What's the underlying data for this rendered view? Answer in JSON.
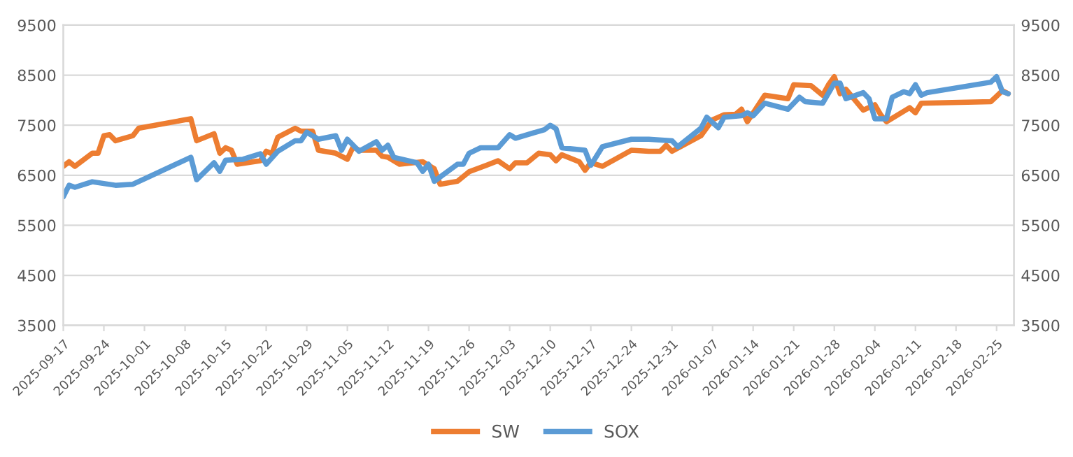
{
  "chart_data": {
    "type": "line",
    "legend": "bottom",
    "grid": "y",
    "line_style": "solid",
    "marker": "none",
    "xlim": [
      "2025-09-17",
      "2026-02-28"
    ],
    "xticks": [
      "2025-09-17",
      "2025-09-24",
      "2025-10-01",
      "2025-10-08",
      "2025-10-15",
      "2025-10-22",
      "2025-10-29",
      "2025-11-05",
      "2025-11-12",
      "2025-11-19",
      "2025-11-26",
      "2025-12-03",
      "2025-12-10",
      "2025-12-17",
      "2025-12-24",
      "2025-12-31",
      "2026-01-07",
      "2026-01-14",
      "2026-01-21",
      "2026-01-28",
      "2026-02-04",
      "2026-02-11",
      "2026-02-18",
      "2026-02-25"
    ],
    "ylim": [
      3500,
      9500
    ],
    "yticks": [
      3500,
      4500,
      5500,
      6500,
      7500,
      8500,
      9500
    ],
    "y2lim": [
      3500,
      9500
    ],
    "y2ticks": [
      3500,
      4500,
      5500,
      6500,
      7500,
      8500,
      9500
    ],
    "series": [
      {
        "name": "SW",
        "color": "#ed7d31",
        "axis": "y",
        "x": [
          "2025-09-17",
          "2025-09-18",
          "2025-09-19",
          "2025-09-22",
          "2025-09-23",
          "2025-09-24",
          "2025-09-25",
          "2025-09-26",
          "2025-09-29",
          "2025-09-30",
          "2025-10-09",
          "2025-10-10",
          "2025-10-13",
          "2025-10-14",
          "2025-10-15",
          "2025-10-16",
          "2025-10-17",
          "2025-10-21",
          "2025-10-22",
          "2025-10-23",
          "2025-10-24",
          "2025-10-27",
          "2025-10-28",
          "2025-10-30",
          "2025-10-31",
          "2025-11-03",
          "2025-11-05",
          "2025-11-06",
          "2025-11-07",
          "2025-11-10",
          "2025-11-11",
          "2025-11-12",
          "2025-11-14",
          "2025-11-18",
          "2025-11-20",
          "2025-11-21",
          "2025-11-24",
          "2025-11-26",
          "2025-11-29",
          "2025-12-01",
          "2025-12-03",
          "2025-12-04",
          "2025-12-06",
          "2025-12-08",
          "2025-12-10",
          "2025-12-11",
          "2025-12-12",
          "2025-12-15",
          "2025-12-16",
          "2025-12-17",
          "2025-12-19",
          "2025-12-24",
          "2025-12-27",
          "2025-12-29",
          "2025-12-30",
          "2025-12-31",
          "2026-01-05",
          "2026-01-07",
          "2026-01-09",
          "2026-01-11",
          "2026-01-12",
          "2026-01-13",
          "2026-01-16",
          "2026-01-20",
          "2026-01-21",
          "2026-01-24",
          "2026-01-26",
          "2026-01-27",
          "2026-01-28",
          "2026-01-29",
          "2026-01-30",
          "2026-02-02",
          "2026-02-04",
          "2026-02-05",
          "2026-02-06",
          "2026-02-10",
          "2026-02-11",
          "2026-02-12",
          "2026-02-24",
          "2026-02-25",
          "2026-02-26",
          "2026-02-27"
        ],
        "values": [
          6680,
          6770,
          6680,
          6940,
          6940,
          7290,
          7310,
          7190,
          7290,
          7440,
          7630,
          7190,
          7330,
          6940,
          7050,
          7000,
          6720,
          6790,
          6980,
          6930,
          7260,
          7440,
          7380,
          7380,
          7000,
          6940,
          6820,
          7070,
          7000,
          7000,
          6880,
          6860,
          6720,
          6770,
          6630,
          6320,
          6380,
          6570,
          6700,
          6790,
          6630,
          6750,
          6750,
          6940,
          6910,
          6790,
          6910,
          6770,
          6600,
          6750,
          6680,
          7000,
          6980,
          6980,
          7100,
          6980,
          7290,
          7610,
          7710,
          7720,
          7820,
          7570,
          8100,
          8030,
          8310,
          8290,
          8100,
          8310,
          8470,
          8130,
          8220,
          7800,
          7910,
          7710,
          7570,
          7850,
          7750,
          7940,
          7970,
          8080,
          8190,
          8130
        ]
      },
      {
        "name": "SOX",
        "color": "#5b9bd5",
        "axis": "y2",
        "x": [
          "2025-09-17",
          "2025-09-18",
          "2025-09-19",
          "2025-09-22",
          "2025-09-26",
          "2025-09-29",
          "2025-10-09",
          "2025-10-10",
          "2025-10-13",
          "2025-10-14",
          "2025-10-15",
          "2025-10-18",
          "2025-10-21",
          "2025-10-22",
          "2025-10-24",
          "2025-10-27",
          "2025-10-28",
          "2025-10-29",
          "2025-10-31",
          "2025-11-03",
          "2025-11-04",
          "2025-11-05",
          "2025-11-07",
          "2025-11-10",
          "2025-11-11",
          "2025-11-12",
          "2025-11-13",
          "2025-11-17",
          "2025-11-18",
          "2025-11-19",
          "2025-11-20",
          "2025-11-24",
          "2025-11-25",
          "2025-11-26",
          "2025-11-28",
          "2025-12-01",
          "2025-12-03",
          "2025-12-04",
          "2025-12-06",
          "2025-12-09",
          "2025-12-10",
          "2025-12-11",
          "2025-12-12",
          "2025-12-16",
          "2025-12-17",
          "2025-12-19",
          "2025-12-24",
          "2025-12-27",
          "2025-12-31",
          "2026-01-01",
          "2026-01-05",
          "2026-01-06",
          "2026-01-08",
          "2026-01-09",
          "2026-01-12",
          "2026-01-13",
          "2026-01-14",
          "2026-01-16",
          "2026-01-20",
          "2026-01-22",
          "2026-01-23",
          "2026-01-26",
          "2026-01-28",
          "2026-01-29",
          "2026-01-30",
          "2026-02-02",
          "2026-02-03",
          "2026-02-04",
          "2026-02-06",
          "2026-02-07",
          "2026-02-09",
          "2026-02-10",
          "2026-02-11",
          "2026-02-12",
          "2026-02-13",
          "2026-02-24",
          "2026-02-25",
          "2026-02-26",
          "2026-02-27"
        ],
        "values": [
          6070,
          6300,
          6260,
          6370,
          6300,
          6320,
          6860,
          6410,
          6750,
          6580,
          6800,
          6820,
          6930,
          6720,
          6980,
          7190,
          7190,
          7360,
          7220,
          7290,
          7000,
          7220,
          6980,
          7170,
          7000,
          7100,
          6860,
          6750,
          6580,
          6720,
          6380,
          6720,
          6720,
          6940,
          7050,
          7050,
          7310,
          7240,
          7310,
          7410,
          7500,
          7430,
          7050,
          7000,
          6700,
          7070,
          7220,
          7220,
          7190,
          7070,
          7440,
          7660,
          7450,
          7660,
          7690,
          7750,
          7690,
          7940,
          7820,
          8060,
          7970,
          7940,
          8340,
          8340,
          8030,
          8150,
          8030,
          7630,
          7630,
          8060,
          8170,
          8130,
          8310,
          8100,
          8150,
          8360,
          8470,
          8170,
          8130
        ]
      }
    ]
  }
}
